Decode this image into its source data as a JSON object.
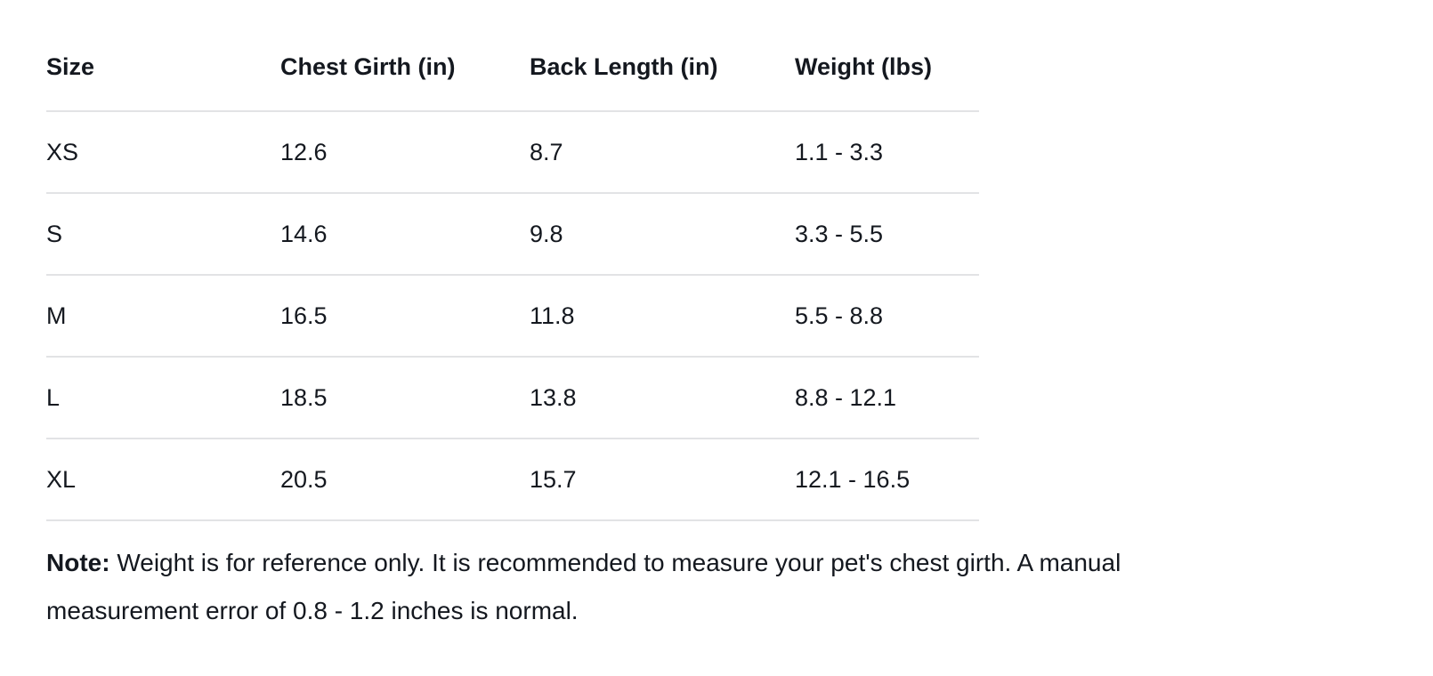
{
  "table": {
    "columns": [
      "Size",
      "Chest Girth (in)",
      "Back Length (in)",
      "Weight (lbs)"
    ],
    "rows": [
      {
        "size": "XS",
        "chest_girth_in": "12.6",
        "back_length_in": "8.7",
        "weight_lbs": "1.1 - 3.3"
      },
      {
        "size": "S",
        "chest_girth_in": "14.6",
        "back_length_in": "9.8",
        "weight_lbs": "3.3 - 5.5"
      },
      {
        "size": "M",
        "chest_girth_in": "16.5",
        "back_length_in": "11.8",
        "weight_lbs": "5.5 - 8.8"
      },
      {
        "size": "L",
        "chest_girth_in": "18.5",
        "back_length_in": "13.8",
        "weight_lbs": "8.8 - 12.1"
      },
      {
        "size": "XL",
        "chest_girth_in": "20.5",
        "back_length_in": "15.7",
        "weight_lbs": "12.1 - 16.5"
      }
    ]
  },
  "note": {
    "label": "Note:",
    "text": "Weight is for reference only. It is recommended to measure your pet's chest girth. A manual measurement error of 0.8 - 1.2 inches is normal."
  },
  "colors": {
    "text": "#14181f",
    "divider": "#e2e3e5",
    "background": "#ffffff"
  }
}
